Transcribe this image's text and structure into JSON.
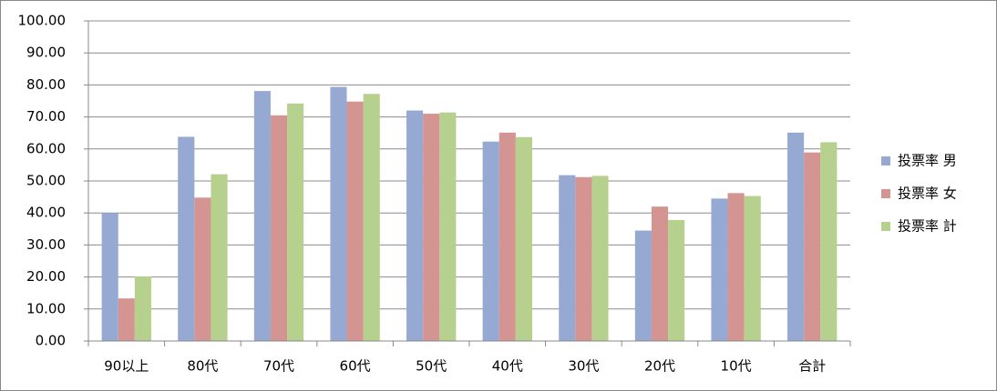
{
  "chart_data": {
    "type": "bar",
    "categories": [
      "90以上",
      "80代",
      "70代",
      "60代",
      "50代",
      "40代",
      "30代",
      "20代",
      "10代",
      "合計"
    ],
    "series": [
      {
        "name": "投票率 男",
        "color": "#95a9d3",
        "values": [
          40.0,
          63.8,
          78.1,
          79.4,
          72.0,
          62.3,
          51.8,
          34.5,
          44.5,
          65.1
        ]
      },
      {
        "name": "投票率 女",
        "color": "#d49491",
        "values": [
          13.3,
          44.8,
          70.5,
          74.8,
          71.0,
          65.1,
          51.2,
          42.0,
          46.2,
          58.9
        ]
      },
      {
        "name": "投票率 計",
        "color": "#b6d08e",
        "values": [
          20.2,
          52.1,
          74.2,
          77.2,
          71.4,
          63.7,
          51.6,
          37.8,
          45.3,
          62.1
        ]
      }
    ],
    "ylim": [
      0,
      100
    ],
    "yticks": [
      {
        "value": 0,
        "label": "0.00"
      },
      {
        "value": 10,
        "label": "10.00"
      },
      {
        "value": 20,
        "label": "20.00"
      },
      {
        "value": 30,
        "label": "30.00"
      },
      {
        "value": 40,
        "label": "40.00"
      },
      {
        "value": 50,
        "label": "50.00"
      },
      {
        "value": 60,
        "label": "60.00"
      },
      {
        "value": 70,
        "label": "70.00"
      },
      {
        "value": 80,
        "label": "80.00"
      },
      {
        "value": 90,
        "label": "90.00"
      },
      {
        "value": 100,
        "label": "100.00"
      }
    ],
    "grid": true,
    "legend": "right"
  }
}
